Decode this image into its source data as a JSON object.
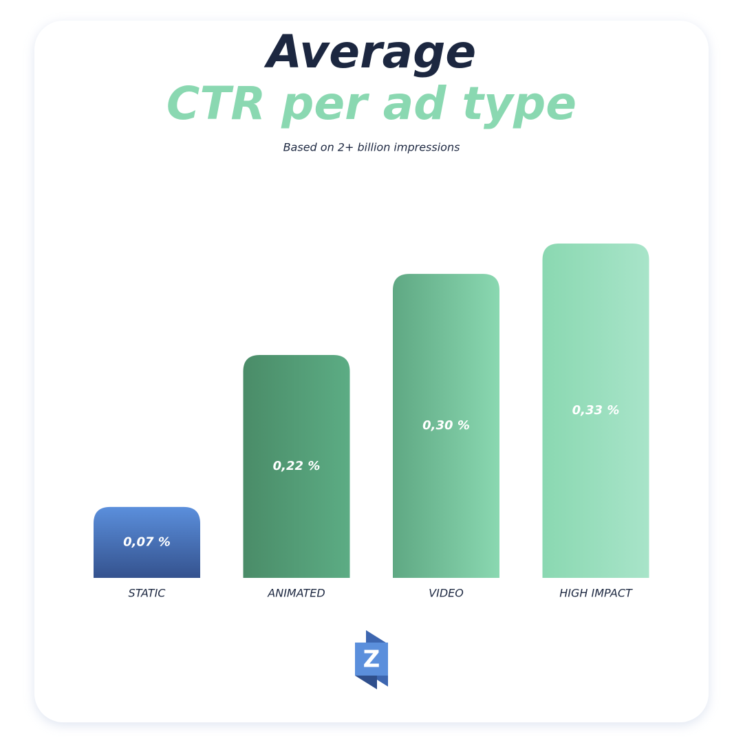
{
  "chart_data": {
    "type": "bar",
    "title": "Average",
    "title_highlight": "CTR per ad type",
    "subtitle": "Based on 2+ billion impressions",
    "categories": [
      "STATIC",
      "ANIMATED",
      "VIDEO",
      "HIGH IMPACT"
    ],
    "values": [
      0.07,
      0.22,
      0.3,
      0.33
    ],
    "value_labels": [
      "0,07 %",
      "0,22 %",
      "0,30 %",
      "0,33 %"
    ],
    "gradients": [
      {
        "from": "#5b8fdc",
        "to": "#34528e",
        "direction": "vertical"
      },
      {
        "from": "#4a8c68",
        "to": "#5cac84",
        "direction": "horizontal"
      },
      {
        "from": "#5fa883",
        "to": "#8ad8b1",
        "direction": "horizontal"
      },
      {
        "from": "#8ad8b1",
        "to": "#a8e4c9",
        "direction": "horizontal"
      }
    ],
    "logo": "Z"
  }
}
